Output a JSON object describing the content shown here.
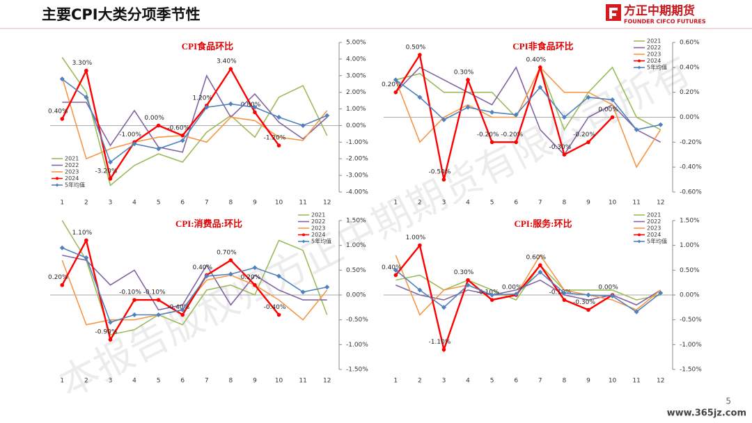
{
  "header": {
    "title": "主要CPI大类分项季节性",
    "logo_cn": "方正中期期货",
    "logo_en": "FOUNDER CIFCO FUTURES",
    "page": "5",
    "site": "www.365jz.com",
    "watermark": "本报告版权归方正中期期货有限公司所有"
  },
  "chart_data": [
    {
      "type": "line",
      "title": "CPI食品环比",
      "categories": [
        1,
        2,
        3,
        4,
        5,
        6,
        7,
        8,
        9,
        10,
        11,
        12
      ],
      "ylim": [
        -4,
        5
      ],
      "yticks": [
        {
          "value": -4,
          "label": "-4.00%"
        },
        {
          "value": -3,
          "label": "-3.00%"
        },
        {
          "value": -2,
          "label": "-2.00%"
        },
        {
          "value": -1,
          "label": "-1.00%"
        },
        {
          "value": 0,
          "label": "0.00%"
        },
        {
          "value": 1,
          "label": "1.00%"
        },
        {
          "value": 2,
          "label": "2.00%"
        },
        {
          "value": 3,
          "label": "3.00%"
        },
        {
          "value": 4,
          "label": "4.00%"
        },
        {
          "value": 5,
          "label": "5.00%"
        }
      ],
      "series": [
        {
          "name": "2021",
          "color": "#9bbb59",
          "values": [
            4.1,
            2.0,
            -3.6,
            -2.4,
            -1.7,
            -2.2,
            -0.4,
            0.6,
            -0.7,
            1.7,
            2.4,
            -0.6
          ]
        },
        {
          "name": "2022",
          "color": "#8064a2",
          "values": [
            1.4,
            1.4,
            -1.2,
            0.9,
            -1.3,
            -1.6,
            3.0,
            0.5,
            1.9,
            0.2,
            -0.8,
            0.5
          ]
        },
        {
          "name": "2023",
          "color": "#f79646",
          "values": [
            2.9,
            -2.0,
            -1.4,
            -1.0,
            -0.7,
            -0.6,
            -1.0,
            0.5,
            0.3,
            -0.7,
            -0.9,
            0.9
          ]
        },
        {
          "name": "2024",
          "color": "#ff0000",
          "values": [
            0.4,
            3.3,
            -3.2,
            -1.0,
            0.0,
            -0.6,
            1.2,
            3.4,
            0.8,
            -1.2,
            null,
            null
          ],
          "value_labels": [
            "0.40%",
            "3.30%",
            "-3.20%",
            "-1.00%",
            "0.00%",
            "-0.60%",
            "1.20%",
            "3.40%",
            "0.80%",
            "-1.20%",
            null,
            null
          ]
        },
        {
          "name": "5年均值",
          "color": "#4f81bd",
          "values": [
            2.8,
            1.7,
            -2.2,
            -1.1,
            -1.4,
            -0.9,
            1.1,
            1.3,
            1.1,
            0.5,
            0.0,
            0.6
          ]
        }
      ]
    },
    {
      "type": "line",
      "title": "CPI非食品环比",
      "categories": [
        1,
        2,
        3,
        4,
        5,
        6,
        7,
        8,
        9,
        10,
        11,
        12
      ],
      "ylim": [
        -0.6,
        0.6
      ],
      "yticks": [
        {
          "value": -0.6,
          "label": "-0.60%"
        },
        {
          "value": -0.4,
          "label": "-0.40%"
        },
        {
          "value": -0.2,
          "label": "-0.20%"
        },
        {
          "value": 0,
          "label": "0.00%"
        },
        {
          "value": 0.2,
          "label": "0.20%"
        },
        {
          "value": 0.4,
          "label": "0.40%"
        },
        {
          "value": 0.6,
          "label": "0.60%"
        }
      ],
      "series": [
        {
          "name": "2021",
          "color": "#9bbb59",
          "values": [
            0.3,
            0.35,
            0.2,
            0.2,
            0.2,
            0.0,
            0.4,
            -0.1,
            0.2,
            0.4,
            0.0,
            -0.1
          ]
        },
        {
          "name": "2022",
          "color": "#8064a2",
          "values": [
            0.2,
            0.4,
            0.3,
            0.2,
            0.1,
            0.4,
            -0.1,
            -0.3,
            0.0,
            0.1,
            -0.1,
            -0.2
          ]
        },
        {
          "name": "2023",
          "color": "#f79646",
          "values": [
            0.3,
            -0.2,
            0.0,
            0.1,
            0.0,
            0.0,
            0.4,
            0.2,
            0.2,
            0.1,
            -0.4,
            -0.1
          ]
        },
        {
          "name": "2024",
          "color": "#ff0000",
          "values": [
            0.2,
            0.5,
            -0.5,
            0.3,
            -0.2,
            -0.2,
            0.4,
            -0.3,
            -0.2,
            0.0,
            null,
            null
          ],
          "value_labels": [
            "0.20%",
            "0.50%",
            "-0.50%",
            "0.30%",
            "-0.20%",
            "-0.20%",
            "0.40%",
            "-0.30%",
            "-0.20%",
            "0.00%",
            null,
            null
          ]
        },
        {
          "name": "5年均值",
          "color": "#4f81bd",
          "values": [
            0.3,
            0.16,
            -0.02,
            0.08,
            0.04,
            0.02,
            0.24,
            0.0,
            0.16,
            0.14,
            -0.1,
            -0.06
          ]
        }
      ]
    },
    {
      "type": "line",
      "title": "CPI:消费品:环比",
      "categories": [
        1,
        2,
        3,
        4,
        5,
        6,
        7,
        8,
        9,
        10,
        11,
        12
      ],
      "ylim": [
        -1.5,
        1.5
      ],
      "yticks": [
        {
          "value": -1.5,
          "label": "-1.50%"
        },
        {
          "value": -1,
          "label": "-1.00%"
        },
        {
          "value": -0.5,
          "label": "-0.50%"
        },
        {
          "value": 0,
          "label": "0.00%"
        },
        {
          "value": 0.5,
          "label": "0.50%"
        },
        {
          "value": 1,
          "label": "1.00%"
        },
        {
          "value": 1.5,
          "label": "1.50%"
        }
      ],
      "series": [
        {
          "name": "2021",
          "color": "#9bbb59",
          "values": [
            1.5,
            0.7,
            -0.8,
            -0.7,
            -0.4,
            -0.6,
            0.1,
            0.2,
            0.0,
            1.1,
            0.9,
            -0.4
          ]
        },
        {
          "name": "2022",
          "color": "#8064a2",
          "values": [
            0.8,
            0.7,
            0.2,
            0.5,
            -0.3,
            -0.2,
            0.6,
            -0.2,
            0.4,
            0.1,
            -0.1,
            -0.1
          ]
        },
        {
          "name": "2023",
          "color": "#f79646",
          "values": [
            0.7,
            -0.6,
            -0.5,
            -0.5,
            -0.4,
            -0.3,
            0.3,
            0.4,
            0.2,
            -0.1,
            -0.5,
            0.1
          ]
        },
        {
          "name": "2024",
          "color": "#ff0000",
          "values": [
            0.2,
            1.1,
            -0.9,
            -0.1,
            -0.1,
            -0.4,
            0.4,
            0.7,
            0.2,
            -0.4,
            null,
            null
          ],
          "value_labels": [
            "0.20%",
            "1.10%",
            "-0.90%",
            "-0.10%",
            "-0.10%",
            "-0.40%",
            "0.40%",
            "0.70%",
            "0.20%",
            "-0.40%",
            null,
            null
          ]
        },
        {
          "name": "5年均值",
          "color": "#4f81bd",
          "values": [
            0.95,
            0.75,
            -0.55,
            -0.4,
            -0.4,
            -0.3,
            0.38,
            0.42,
            0.55,
            0.38,
            0.06,
            0.16
          ]
        }
      ]
    },
    {
      "type": "line",
      "title": "CPI:服务:环比",
      "categories": [
        1,
        2,
        3,
        4,
        5,
        6,
        7,
        8,
        9,
        10,
        11,
        12
      ],
      "ylim": [
        -1.5,
        1.5
      ],
      "yticks": [
        {
          "value": -1.5,
          "label": "-1.50%"
        },
        {
          "value": -1,
          "label": "-1.00%"
        },
        {
          "value": -0.5,
          "label": "-0.50%"
        },
        {
          "value": 0,
          "label": "0.00%"
        },
        {
          "value": 0.5,
          "label": "0.50%"
        },
        {
          "value": 1,
          "label": "1.00%"
        },
        {
          "value": 1.5,
          "label": "1.50%"
        }
      ],
      "series": [
        {
          "name": "2021",
          "color": "#9bbb59",
          "values": [
            0.3,
            0.4,
            0.1,
            0.3,
            0.1,
            -0.1,
            0.6,
            0.1,
            0.1,
            0.1,
            -0.1,
            0.0
          ]
        },
        {
          "name": "2022",
          "color": "#8064a2",
          "values": [
            0.2,
            0.0,
            -0.1,
            0.1,
            0.0,
            0.1,
            0.3,
            0.0,
            -0.1,
            0.0,
            -0.2,
            0.1
          ]
        },
        {
          "name": "2023",
          "color": "#f79646",
          "values": [
            0.8,
            -0.4,
            0.1,
            0.2,
            0.0,
            0.0,
            0.8,
            0.1,
            0.0,
            -0.1,
            -0.3,
            0.1
          ]
        },
        {
          "name": "2024",
          "color": "#ff0000",
          "values": [
            0.4,
            1.0,
            -1.1,
            0.3,
            -0.1,
            0.0,
            0.6,
            -0.1,
            -0.3,
            0.0,
            null,
            null
          ],
          "value_labels": [
            "0.40%",
            "1.00%",
            "-1.10%",
            "0.30%",
            "-0.10%",
            "0.00%",
            "0.60%",
            "-0.10%",
            "-0.30%",
            "0.00%",
            null,
            null
          ]
        },
        {
          "name": "5年均值",
          "color": "#4f81bd",
          "values": [
            0.5,
            0.1,
            -0.25,
            0.2,
            0.0,
            0.02,
            0.46,
            0.04,
            0.0,
            -0.02,
            -0.34,
            0.04
          ]
        }
      ]
    }
  ]
}
